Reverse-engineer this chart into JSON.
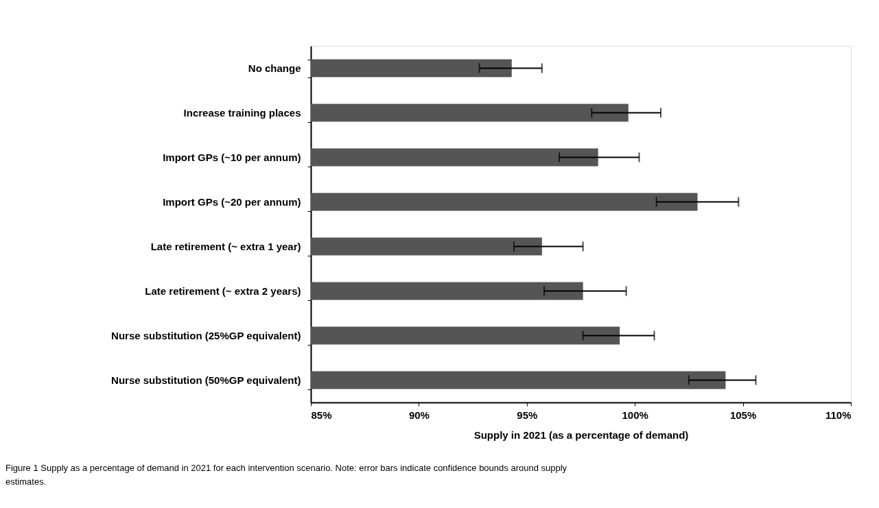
{
  "chart_data": {
    "type": "bar",
    "orientation": "horizontal",
    "categories": [
      "No change",
      "Increase training places",
      "Import GPs (~10 per annum)",
      "Import GPs (~20 per annum)",
      "Late retirement (~ extra 1 year)",
      "Late retirement (~ extra 2 years)",
      "Nurse substitution (25%GP equivalent)",
      "Nurse substitution (50%GP equivalent)"
    ],
    "values": [
      94.3,
      99.7,
      98.3,
      102.9,
      95.7,
      97.6,
      99.3,
      104.2
    ],
    "errors": [
      [
        92.8,
        95.7
      ],
      [
        98.0,
        101.2
      ],
      [
        96.5,
        100.2
      ],
      [
        101.0,
        104.8
      ],
      [
        94.4,
        97.6
      ],
      [
        95.8,
        99.6
      ],
      [
        97.6,
        100.9
      ],
      [
        102.5,
        105.6
      ]
    ],
    "color": "#555555",
    "xlim": [
      85,
      110
    ],
    "xticks": [
      {
        "value": 85,
        "label": "85%"
      },
      {
        "value": 90,
        "label": "90%"
      },
      {
        "value": 95,
        "label": "95%"
      },
      {
        "value": 100,
        "label": "100%"
      },
      {
        "value": 105,
        "label": "105%"
      },
      {
        "value": 110,
        "label": "110%"
      }
    ],
    "xlabel": "Supply in 2021 (as a percentage of demand)",
    "annotations": [
      "Figure 1 Supply as a percentage of demand in 2021 for each intervention scenario. Note: error bars indicate confidence bounds around supply",
      "estimates."
    ]
  }
}
